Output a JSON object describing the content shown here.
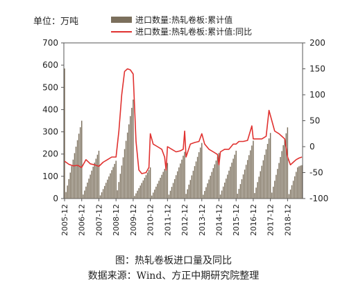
{
  "chart_data": {
    "type": "bar+line",
    "unit_label": "单位：万吨",
    "legend": {
      "bar": "进口数量:热轧卷板:累计值",
      "line": "进口数量:热轧卷板:累计值:同比"
    },
    "colors": {
      "bar": "#7b6f5c",
      "line": "#e0312f"
    },
    "left_axis": {
      "min": 0,
      "max": 700,
      "ticks": [
        0,
        100,
        200,
        300,
        400,
        500,
        600,
        700
      ]
    },
    "right_axis": {
      "min": -100,
      "max": 200,
      "ticks": [
        -100,
        -50,
        0,
        50,
        100,
        150,
        200
      ]
    },
    "x_tick_labels": [
      "2005-12",
      "2006-12",
      "2007-12",
      "2008-12",
      "2009-12",
      "2010-12",
      "2011-12",
      "2012-12",
      "2013-12",
      "2014-12",
      "2015-12",
      "2016-12",
      "2017-12",
      "2018-12"
    ],
    "x_start": "2005-12",
    "x_end": "2019-10",
    "bars": {
      "name": "进口数量:热轧卷板:累计值",
      "year_end_values": [
        585,
        350,
        215,
        170,
        445,
        140,
        160,
        210,
        250,
        205,
        215,
        260,
        295,
        320
      ],
      "last_values_2019": [
        20,
        40,
        60,
        80,
        100,
        120,
        140,
        145,
        148,
        150
      ]
    },
    "line": {
      "name": "进口数量:热轧卷板:累计值:同比",
      "points": [
        [
          "2005-12",
          -28
        ],
        [
          "2006-03",
          -34
        ],
        [
          "2006-06",
          -37
        ],
        [
          "2006-09",
          -36
        ],
        [
          "2006-12",
          -40
        ],
        [
          "2007-03",
          -25
        ],
        [
          "2007-06",
          -33
        ],
        [
          "2007-09",
          -35
        ],
        [
          "2007-12",
          -38
        ],
        [
          "2008-03",
          -30
        ],
        [
          "2008-06",
          -25
        ],
        [
          "2008-09",
          -20
        ],
        [
          "2008-12",
          -20
        ],
        [
          "2009-02",
          30
        ],
        [
          "2009-04",
          100
        ],
        [
          "2009-06",
          145
        ],
        [
          "2009-08",
          150
        ],
        [
          "2009-10",
          148
        ],
        [
          "2009-12",
          140
        ],
        [
          "2010-02",
          10
        ],
        [
          "2010-04",
          -45
        ],
        [
          "2010-06",
          -52
        ],
        [
          "2010-09",
          -50
        ],
        [
          "2010-11",
          -40
        ],
        [
          "2010-12",
          25
        ],
        [
          "2011-02",
          5
        ],
        [
          "2011-05",
          0
        ],
        [
          "2011-08",
          -5
        ],
        [
          "2011-10",
          -20
        ],
        [
          "2011-11",
          -45
        ],
        [
          "2011-12",
          0
        ],
        [
          "2012-03",
          -5
        ],
        [
          "2012-06",
          -10
        ],
        [
          "2012-09",
          -8
        ],
        [
          "2012-11",
          -5
        ],
        [
          "2012-12",
          30
        ],
        [
          "2013-01",
          -20
        ],
        [
          "2013-04",
          5
        ],
        [
          "2013-07",
          8
        ],
        [
          "2013-10",
          10
        ],
        [
          "2013-12",
          25
        ],
        [
          "2014-02",
          5
        ],
        [
          "2014-05",
          -5
        ],
        [
          "2014-08",
          -10
        ],
        [
          "2014-11",
          -15
        ],
        [
          "2014-12",
          -35
        ],
        [
          "2015-01",
          -10
        ],
        [
          "2015-04",
          -5
        ],
        [
          "2015-07",
          -5
        ],
        [
          "2015-10",
          5
        ],
        [
          "2015-12",
          5
        ],
        [
          "2016-02",
          10
        ],
        [
          "2016-05",
          10
        ],
        [
          "2016-08",
          12
        ],
        [
          "2016-11",
          40
        ],
        [
          "2016-12",
          15
        ],
        [
          "2017-03",
          15
        ],
        [
          "2017-06",
          15
        ],
        [
          "2017-09",
          20
        ],
        [
          "2017-11",
          70
        ],
        [
          "2018-01",
          50
        ],
        [
          "2018-03",
          30
        ],
        [
          "2018-06",
          25
        ],
        [
          "2018-08",
          20
        ],
        [
          "2018-10",
          15
        ],
        [
          "2018-12",
          -20
        ],
        [
          "2019-02",
          -35
        ],
        [
          "2019-04",
          -30
        ],
        [
          "2019-06",
          -25
        ],
        [
          "2019-08",
          -22
        ],
        [
          "2019-10",
          -20
        ]
      ]
    }
  },
  "captions": {
    "title": "图：热轧卷板进口量及同比",
    "source": "数据来源：Wind、方正中期研究院整理"
  }
}
